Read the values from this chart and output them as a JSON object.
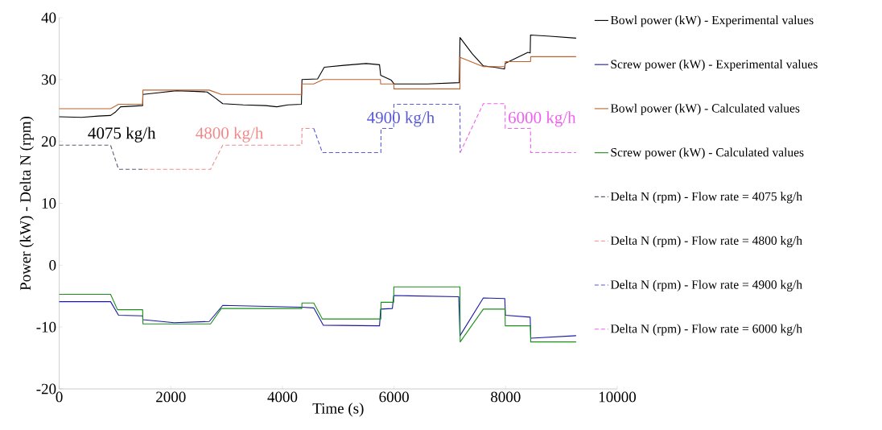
{
  "chart_data": {
    "type": "line",
    "xlabel": "Time (s)",
    "ylabel": "Power (kW) - Delta N (rpm)",
    "xlim": [
      0,
      10000
    ],
    "ylim": [
      -20,
      40
    ],
    "xticks": [
      0,
      2000,
      4000,
      6000,
      8000,
      10000
    ],
    "yticks": [
      -20,
      -10,
      0,
      10,
      20,
      30,
      40
    ],
    "grid": false,
    "legend": "right",
    "series": [
      {
        "name": "Bowl power (kW) - Experimental values",
        "color": "#000000",
        "line_style": "solid",
        "x": [
          0,
          400,
          700,
          920,
          1000,
          1100,
          1495,
          1500,
          1800,
          2100,
          2400,
          2650,
          2800,
          2930,
          3300,
          3700,
          3900,
          4100,
          4340,
          4350,
          4630,
          4750,
          5100,
          5500,
          5740,
          5760,
          5950,
          6000,
          6600,
          7170,
          7182,
          7400,
          7600,
          7800,
          7980,
          7990,
          8400,
          8440,
          8446,
          8800,
          9263
        ],
        "values": [
          24.0,
          23.9,
          24.1,
          24.2,
          24.7,
          25.6,
          25.8,
          27.6,
          27.9,
          28.2,
          28.1,
          28.0,
          27.0,
          26.1,
          25.9,
          25.8,
          25.6,
          25.9,
          26.0,
          30.0,
          30.1,
          32.0,
          32.3,
          32.6,
          32.4,
          30.7,
          29.9,
          29.3,
          29.3,
          29.5,
          36.8,
          34.2,
          32.2,
          32.0,
          31.7,
          32.6,
          34.4,
          34.3,
          37.2,
          37.0,
          36.7
        ]
      },
      {
        "name": "Screw power (kW) - Experimental values",
        "color": "#1a1aa6",
        "line_style": "solid",
        "x": [
          0,
          920,
          1063,
          1495,
          1500,
          2060,
          2688,
          2930,
          4340,
          4561,
          4731,
          5740,
          5760,
          5970,
          5994,
          7160,
          7182,
          7600,
          7985,
          7995,
          8440,
          8450,
          9263
        ],
        "values": [
          -5.9,
          -5.9,
          -8.1,
          -8.2,
          -8.8,
          -9.3,
          -9.1,
          -6.5,
          -6.8,
          -6.9,
          -9.7,
          -9.8,
          -7.1,
          -7.0,
          -4.9,
          -5.1,
          -11.4,
          -5.3,
          -5.4,
          -8.1,
          -8.4,
          -11.8,
          -11.4
        ]
      },
      {
        "name": "Bowl power (kW) - Calculated values",
        "color": "#c0622b",
        "line_style": "solid",
        "x": [
          0,
          920,
          1063,
          1495,
          1500,
          2688,
          2904,
          4347,
          4350,
          4561,
          4731,
          5755,
          5760,
          5994,
          6000,
          7182,
          7185,
          7600,
          7990,
          7995,
          8446,
          8450,
          9263
        ],
        "values": [
          25.3,
          25.3,
          26.0,
          26.0,
          28.3,
          28.3,
          27.6,
          27.6,
          29.3,
          29.3,
          30.0,
          30.0,
          29.3,
          29.3,
          28.5,
          28.5,
          33.6,
          32.1,
          32.1,
          32.9,
          32.9,
          33.7,
          33.7
        ]
      },
      {
        "name": "Screw power (kW) - Calculated values",
        "color": "#1a8f1a",
        "line_style": "solid",
        "x": [
          0,
          920,
          1044,
          1495,
          1500,
          2712,
          2904,
          4347,
          4350,
          4561,
          4716,
          5764,
          5767,
          5994,
          5997,
          7182,
          7185,
          7600,
          7990,
          7993,
          8446,
          8449,
          9263
        ],
        "values": [
          -4.7,
          -4.7,
          -7.2,
          -7.2,
          -9.5,
          -9.5,
          -7.0,
          -7.0,
          -6.1,
          -6.1,
          -8.7,
          -8.7,
          -6.0,
          -6.0,
          -3.5,
          -3.5,
          -12.4,
          -7.1,
          -7.1,
          -9.8,
          -9.8,
          -12.4,
          -12.4
        ]
      },
      {
        "name": "Delta N (rpm) - Flow rate = 4075 kg/h",
        "color": "#5c5c74",
        "line_style": "dashed",
        "x": [
          0,
          920,
          1063,
          1515
        ],
        "values": [
          19.4,
          19.4,
          15.5,
          15.5
        ]
      },
      {
        "name": "Delta N (rpm) - Flow rate = 4800 kg/h",
        "color": "#f08a8a",
        "line_style": "dashed",
        "x": [
          1515,
          2712,
          2930,
          4347,
          4350,
          4561
        ],
        "values": [
          15.5,
          15.5,
          19.4,
          19.4,
          22.1,
          22.1
        ]
      },
      {
        "name": "Delta N (rpm) - Flow rate = 4900 kg/h",
        "color": "#5a5ad8",
        "line_style": "dashed",
        "x": [
          4561,
          4716,
          5764,
          5767,
          5994,
          5997,
          7182,
          7185
        ],
        "values": [
          22.1,
          18.2,
          18.2,
          22.1,
          22.1,
          26.0,
          26.0,
          18.2
        ]
      },
      {
        "name": "Delta N (rpm) - Flow rate = 6000 kg/h",
        "color": "#f060f0",
        "line_style": "dashed",
        "x": [
          7185,
          7600,
          7990,
          7993,
          8446,
          8449,
          9263
        ],
        "values": [
          18.2,
          26.1,
          26.1,
          22.1,
          22.1,
          18.2,
          18.2
        ]
      }
    ],
    "annotations": [
      "4075 kg/h",
      "4800 kg/h",
      "4900 kg/h",
      "6000 kg/h"
    ]
  }
}
